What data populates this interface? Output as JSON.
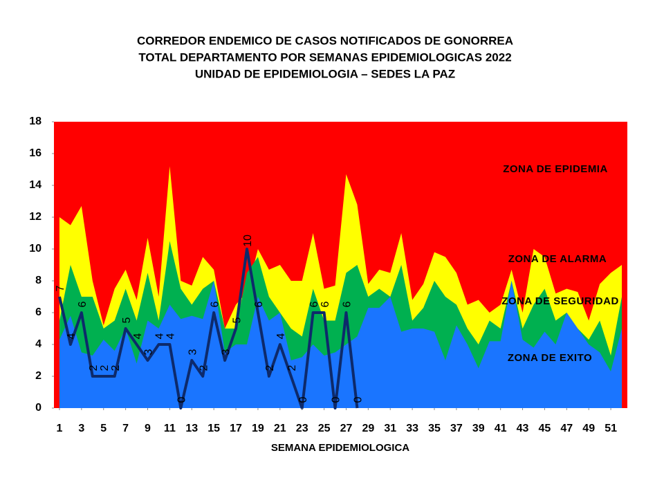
{
  "chart_data": {
    "type": "area",
    "title": [
      "CORREDOR  ENDEMICO  DE CASOS NOTIFICADOS  DE GONORREA",
      "TOTAL DEPARTAMENTO  POR SEMANAS EPIDEMIOLOGICAS  2022",
      "UNIDAD  DE EPIDEMIOLOGIA  – SEDES LA PAZ"
    ],
    "x_label": "SEMANA EPIDEMIOLOGICA",
    "x": [
      1,
      2,
      3,
      4,
      5,
      6,
      7,
      8,
      9,
      10,
      11,
      12,
      13,
      14,
      15,
      16,
      17,
      18,
      19,
      20,
      21,
      22,
      23,
      24,
      25,
      26,
      27,
      28,
      29,
      30,
      31,
      32,
      33,
      34,
      35,
      36,
      37,
      38,
      39,
      40,
      41,
      42,
      43,
      44,
      45,
      46,
      47,
      48,
      49,
      50,
      51,
      52
    ],
    "xlim": [
      0.5,
      52.5
    ],
    "xticks": [
      1,
      3,
      5,
      7,
      9,
      11,
      13,
      15,
      17,
      19,
      21,
      23,
      25,
      27,
      29,
      31,
      33,
      35,
      37,
      39,
      41,
      43,
      45,
      47,
      49,
      51
    ],
    "ylim": [
      0,
      18
    ],
    "yticks": [
      0,
      2,
      4,
      6,
      8,
      10,
      12,
      14,
      16,
      18
    ],
    "plot_background": {
      "name": "ZONA DE EPIDEMIA",
      "color": "#ff0000"
    },
    "series": [
      {
        "name": "ZONA DE ALARMA",
        "color": "#ffff00",
        "values": [
          12,
          11.5,
          12.7,
          8,
          5.2,
          7.5,
          8.7,
          6.8,
          10.7,
          7,
          15.2,
          8,
          7.7,
          9.5,
          8.7,
          5,
          6.5,
          7.3,
          10,
          8.7,
          9,
          8,
          8,
          11,
          7.5,
          7.7,
          14.7,
          12.8,
          7.8,
          8.7,
          8.5,
          11,
          6.8,
          7.8,
          9.8,
          9.5,
          8.5,
          6.5,
          6.8,
          6,
          6.5,
          8.7,
          6,
          10,
          9.5,
          7.2,
          7.5,
          7.3,
          5.5,
          7.8,
          8.5,
          9
        ]
      },
      {
        "name": "ZONA DE  SEGURIDAD",
        "color": "#00b050",
        "values": [
          5.5,
          9,
          7,
          7,
          5,
          5.5,
          7.5,
          5.5,
          8.5,
          5.5,
          10.5,
          7.5,
          6.5,
          7.5,
          8,
          5,
          5,
          8.5,
          9.5,
          7,
          6,
          5,
          4.5,
          7.5,
          5.5,
          5.5,
          8.5,
          9,
          7,
          7.5,
          7,
          9,
          5.5,
          6.3,
          8,
          7,
          6.5,
          5,
          4,
          5.5,
          5,
          8,
          5,
          6.5,
          7.5,
          5.5,
          6,
          5,
          4.3,
          5.5,
          3.3,
          7
        ]
      },
      {
        "name": "ZONA DE  EXITO",
        "color": "#1a75ff",
        "values": [
          4.3,
          5.8,
          3.5,
          3.3,
          4.3,
          3.6,
          5,
          2.8,
          5.5,
          5,
          6.5,
          5.6,
          5.8,
          5.6,
          8,
          3.5,
          4,
          4,
          7,
          5.5,
          6,
          3,
          3.2,
          4,
          3.3,
          3.5,
          4,
          4.5,
          6.3,
          6.3,
          7,
          4.8,
          5,
          5,
          4.8,
          3,
          5.2,
          4,
          2.5,
          4.2,
          4.2,
          8,
          4.3,
          3.8,
          4.8,
          4,
          6,
          5,
          4,
          3.5,
          2.3,
          5
        ]
      },
      {
        "type": "line",
        "color": "#0d2a6b",
        "values": [
          7,
          4,
          6,
          2,
          2,
          2,
          5,
          4,
          3,
          4,
          4,
          0,
          3,
          2,
          6,
          3,
          5,
          10,
          6,
          2,
          4,
          2,
          0,
          6,
          6,
          0,
          6,
          0,
          null,
          null,
          null,
          null,
          null,
          null,
          null,
          null,
          null,
          null,
          null,
          null,
          null,
          null,
          null,
          null,
          null,
          null,
          null,
          null,
          null,
          null,
          null,
          null
        ]
      }
    ]
  }
}
